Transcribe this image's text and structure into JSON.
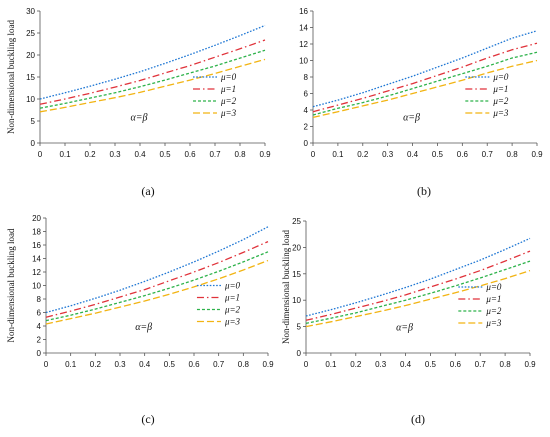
{
  "figure": {
    "series_colors": [
      "#1f77d4",
      "#e0323a",
      "#2db24a",
      "#f2b413"
    ],
    "legend_labels": [
      "μ=0",
      "μ=1",
      "μ=2",
      "μ=3"
    ],
    "annotation": "α=β",
    "ylabel": "Non-dimensional buckling load"
  },
  "chart_data": [
    {
      "type": "line",
      "caption": "(a)",
      "annotation": "α=β",
      "ylabel": "Non-dimensional buckling load",
      "x": [
        0,
        0.1,
        0.2,
        0.3,
        0.4,
        0.5,
        0.6,
        0.7,
        0.8,
        0.9
      ],
      "xticks": [
        "0",
        "0.1",
        "0.2",
        "0.3",
        "0.4",
        "0.5",
        "0.6",
        "0.7",
        "0.8",
        "0.9"
      ],
      "ylim": [
        0,
        30
      ],
      "yticks": [
        "0",
        "5",
        "10",
        "15",
        "20",
        "25",
        "30"
      ],
      "legend_position": "right",
      "series": [
        {
          "name": "μ=0",
          "values": [
            10.0,
            11.4,
            12.9,
            14.5,
            16.2,
            18.1,
            20.1,
            22.2,
            24.4,
            26.7
          ]
        },
        {
          "name": "μ=1",
          "values": [
            8.8,
            10.0,
            11.3,
            12.7,
            14.2,
            15.9,
            17.6,
            19.5,
            21.4,
            23.4
          ]
        },
        {
          "name": "μ=2",
          "values": [
            7.9,
            9.0,
            10.2,
            11.4,
            12.8,
            14.3,
            15.9,
            17.5,
            19.3,
            21.1
          ]
        },
        {
          "name": "μ=3",
          "values": [
            7.1,
            8.1,
            9.2,
            10.3,
            11.5,
            12.9,
            14.3,
            15.8,
            17.4,
            19.0
          ]
        }
      ]
    },
    {
      "type": "line",
      "caption": "(b)",
      "annotation": "α=β",
      "ylabel": "",
      "x": [
        0,
        0.1,
        0.2,
        0.3,
        0.4,
        0.5,
        0.6,
        0.7,
        0.8,
        0.9
      ],
      "xticks": [
        "0",
        "0.1",
        "0.2",
        "0.3",
        "0.4",
        "0.5",
        "0.6",
        "0.7",
        "0.8",
        "0.9"
      ],
      "ylim": [
        0,
        16
      ],
      "yticks": [
        "0",
        "2",
        "4",
        "6",
        "8",
        "10",
        "12",
        "14",
        "16"
      ],
      "legend_position": "right",
      "series": [
        {
          "name": "μ=0",
          "values": [
            4.4,
            5.2,
            6.1,
            7.1,
            8.1,
            9.2,
            10.3,
            11.5,
            12.7,
            13.6
          ]
        },
        {
          "name": "μ=1",
          "values": [
            3.8,
            4.6,
            5.4,
            6.3,
            7.2,
            8.2,
            9.2,
            10.3,
            11.3,
            12.1
          ]
        },
        {
          "name": "μ=2",
          "values": [
            3.4,
            4.2,
            4.9,
            5.7,
            6.6,
            7.5,
            8.4,
            9.3,
            10.3,
            11.0
          ]
        },
        {
          "name": "μ=3",
          "values": [
            3.1,
            3.8,
            4.5,
            5.2,
            6.0,
            6.8,
            7.6,
            8.5,
            9.3,
            10.0
          ]
        }
      ]
    },
    {
      "type": "line",
      "caption": "(c)",
      "annotation": "α=β",
      "ylabel": "Non-dimensional buckling load",
      "x": [
        0,
        0.1,
        0.2,
        0.3,
        0.4,
        0.5,
        0.6,
        0.7,
        0.8,
        0.9
      ],
      "xticks": [
        "0",
        "0.1",
        "0.2",
        "0.3",
        "0.4",
        "0.5",
        "0.6",
        "0.7",
        "0.8",
        "0.9"
      ],
      "ylim": [
        0,
        20
      ],
      "yticks": [
        "0",
        "2",
        "4",
        "6",
        "8",
        "10",
        "12",
        "14",
        "16",
        "18",
        "20"
      ],
      "legend_position": "right",
      "series": [
        {
          "name": "μ=0",
          "values": [
            6.0,
            7.0,
            8.1,
            9.3,
            10.6,
            12.0,
            13.5,
            15.1,
            16.8,
            18.7
          ]
        },
        {
          "name": "μ=1",
          "values": [
            5.3,
            6.2,
            7.2,
            8.3,
            9.4,
            10.7,
            12.0,
            13.4,
            14.9,
            16.5
          ]
        },
        {
          "name": "μ=2",
          "values": [
            4.8,
            5.6,
            6.5,
            7.5,
            8.5,
            9.6,
            10.8,
            12.1,
            13.5,
            15.0
          ]
        },
        {
          "name": "μ=3",
          "values": [
            4.3,
            5.1,
            5.9,
            6.8,
            7.7,
            8.7,
            9.8,
            11.0,
            12.3,
            13.7
          ]
        }
      ]
    },
    {
      "type": "line",
      "caption": "(d)",
      "annotation": "α=β",
      "ylabel": "Non-dimensional buckling load",
      "x": [
        0,
        0.1,
        0.2,
        0.3,
        0.4,
        0.5,
        0.6,
        0.7,
        0.8,
        0.9
      ],
      "xticks": [
        "0",
        "0.1",
        "0.2",
        "0.3",
        "0.4",
        "0.5",
        "0.6",
        "0.7",
        "0.8",
        "0.9"
      ],
      "ylim": [
        0,
        25
      ],
      "yticks": [
        "0",
        "5",
        "10",
        "15",
        "20",
        "25"
      ],
      "legend_position": "right",
      "series": [
        {
          "name": "μ=0",
          "values": [
            7.0,
            8.2,
            9.5,
            10.9,
            12.4,
            14.0,
            15.8,
            17.6,
            19.6,
            21.7
          ]
        },
        {
          "name": "μ=1",
          "values": [
            6.2,
            7.3,
            8.5,
            9.7,
            11.0,
            12.5,
            14.0,
            15.6,
            17.4,
            19.3
          ]
        },
        {
          "name": "μ=2",
          "values": [
            5.6,
            6.6,
            7.6,
            8.8,
            10.0,
            11.3,
            12.7,
            14.2,
            15.8,
            17.4
          ]
        },
        {
          "name": "μ=3",
          "values": [
            5.0,
            5.9,
            6.9,
            7.9,
            9.0,
            10.2,
            11.4,
            12.7,
            14.1,
            15.6
          ]
        }
      ]
    }
  ]
}
